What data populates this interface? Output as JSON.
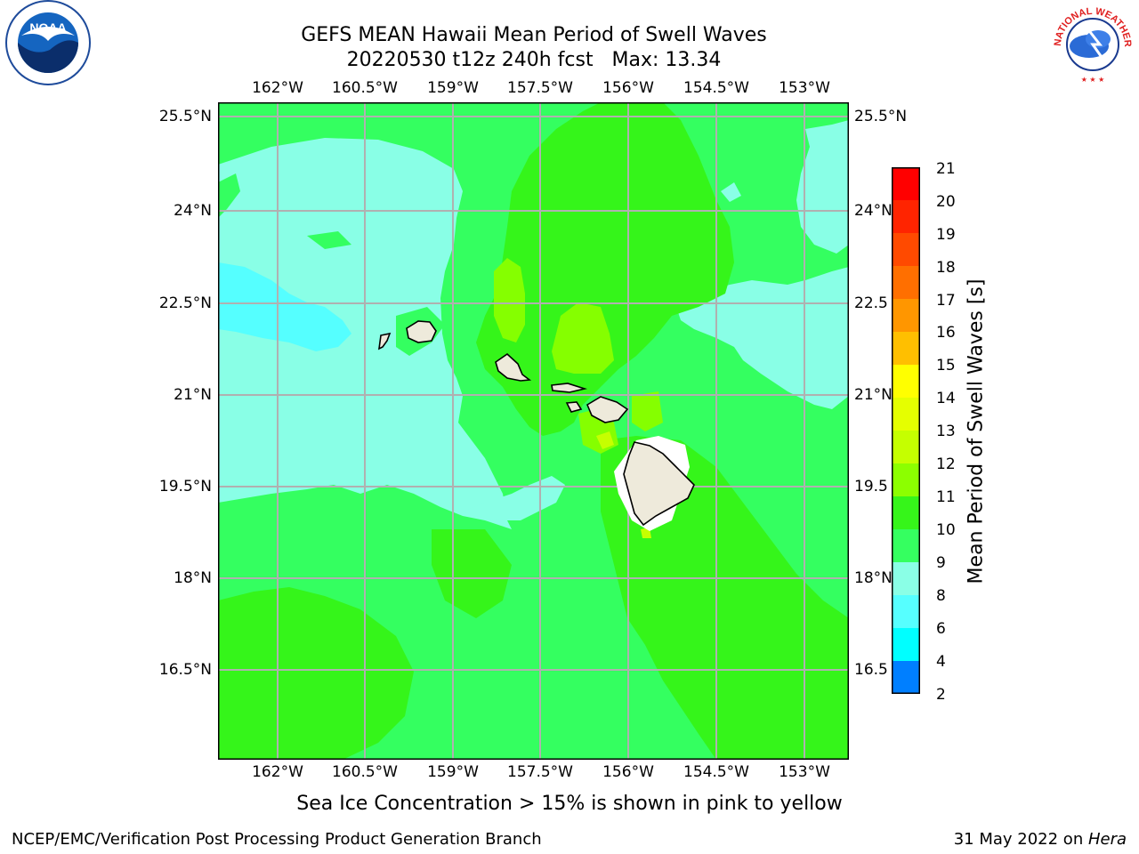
{
  "header": {
    "title_line1": "GEFS MEAN Hawaii Mean Period of Swell Waves",
    "title_line2": "20220530 t12z 240h fcst   Max: 13.34"
  },
  "logos": {
    "left": "NOAA",
    "right": "NATIONAL WEATHER SERVICE"
  },
  "map": {
    "lon_labels": [
      "162°W",
      "160.5°W",
      "159°W",
      "157.5°W",
      "156°W",
      "154.5°W",
      "153°W"
    ],
    "lat_labels": [
      "25.5°N",
      "24°N",
      "22.5°N",
      "21°N",
      "19.5°N",
      "18°N",
      "16.5°N"
    ],
    "lat_labels_right": [
      "25.5°N",
      "24°N",
      "22.5",
      "21°N",
      "19.5",
      "18°N",
      "16.5"
    ],
    "colors": {
      "ocean_light": "#89ffe6",
      "ocean_cyan": "#55ffff",
      "green_10": "#34ff60",
      "green_11": "#35f51a",
      "green_12": "#85ff00",
      "green_13": "#c6ff00",
      "land": "#eeeadb",
      "grid": "#b0b0b0"
    }
  },
  "colorbar": {
    "title": "Mean Period of Swell Waves [s]",
    "ticks": [
      "21",
      "20",
      "19",
      "18",
      "17",
      "16",
      "15",
      "14",
      "13",
      "12",
      "11",
      "10",
      "9",
      "8",
      "6",
      "4",
      "2"
    ],
    "colors": [
      "#ff0000",
      "#ff2400",
      "#ff4a00",
      "#ff6f00",
      "#ff9600",
      "#ffbf00",
      "#ffff00",
      "#e5ff00",
      "#c5ff00",
      "#8cff00",
      "#36f51a",
      "#35ff60",
      "#8affe6",
      "#56ffff",
      "#00ffff",
      "#007fff",
      "#0000ff"
    ]
  },
  "caption": "Sea Ice Concentration > 15% is shown in pink to yellow",
  "footer": {
    "left": "NCEP/EMC/Verification Post Processing Product Generation Branch",
    "right_date": "31 May 2022 on ",
    "right_host": "Hera"
  }
}
